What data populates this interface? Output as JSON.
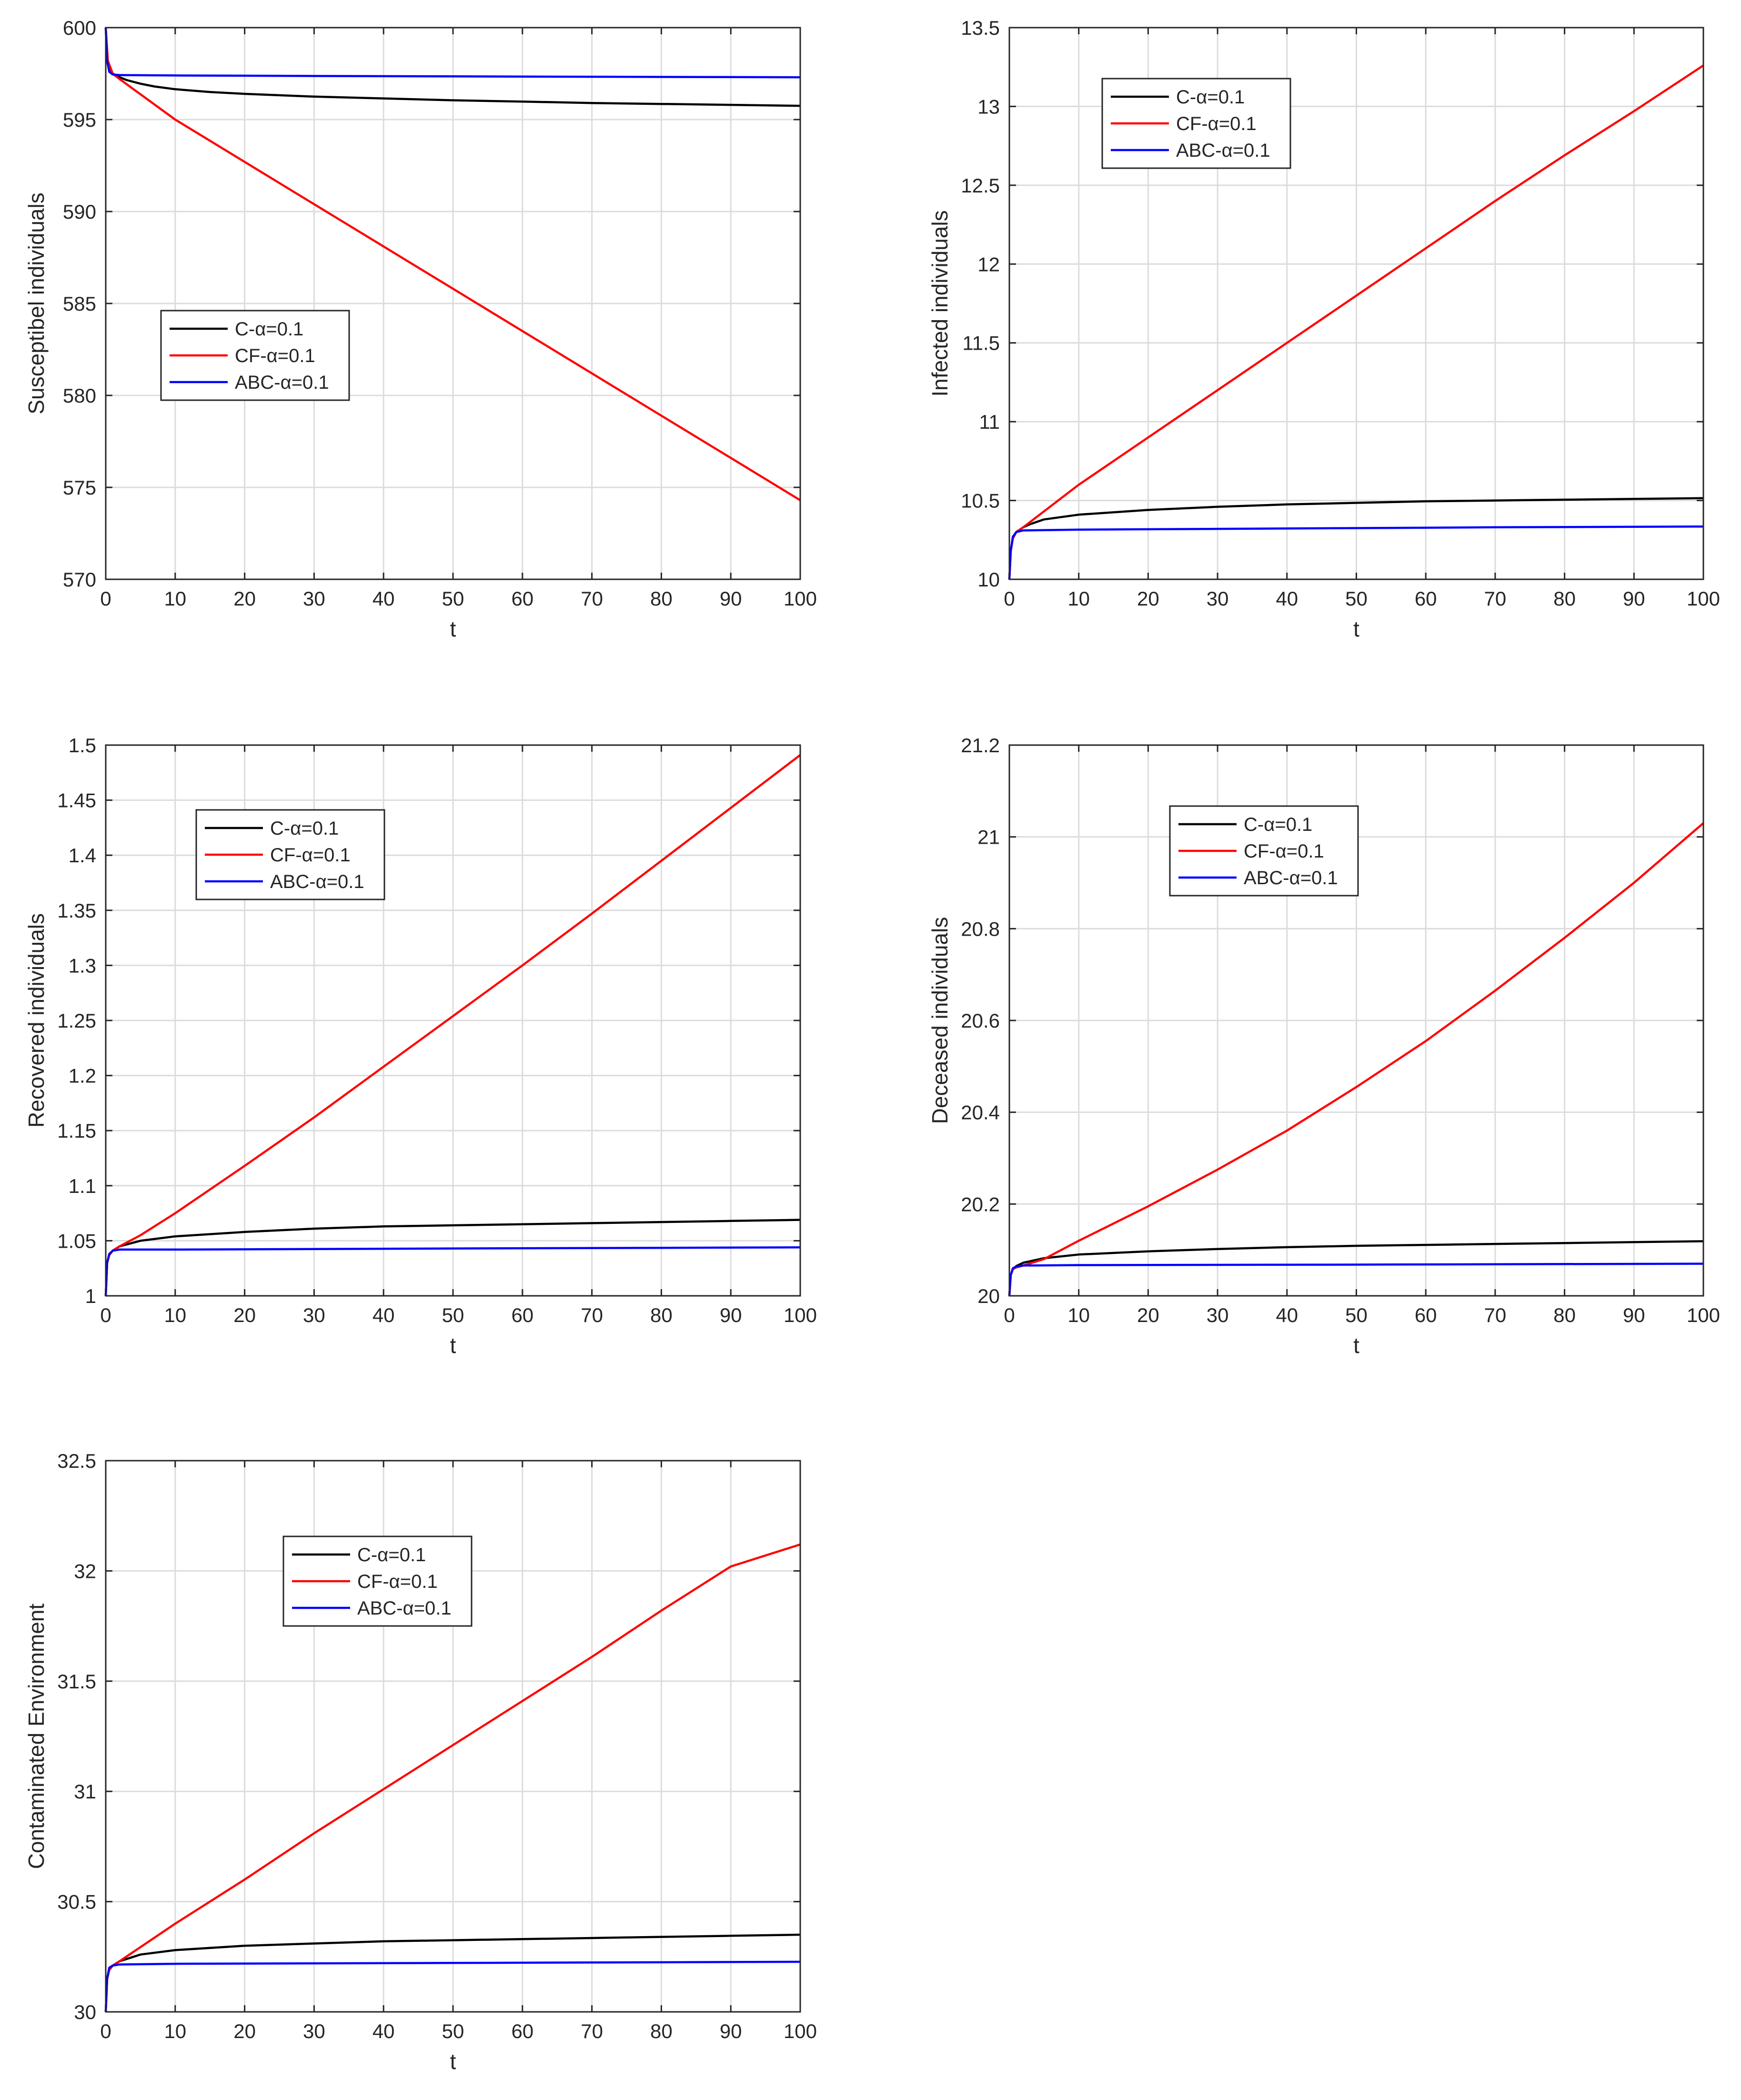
{
  "chart_data": [
    {
      "type": "line",
      "xlabel": "t",
      "ylabel": "Susceptibel individuals",
      "xlim": [
        0,
        100
      ],
      "ylim": [
        570,
        600
      ],
      "xticks": [
        0,
        10,
        20,
        30,
        40,
        50,
        60,
        70,
        80,
        90,
        100
      ],
      "yticks": [
        570,
        575,
        580,
        585,
        590,
        595,
        600
      ],
      "ytick_labels": [
        "570",
        "575",
        "580",
        "585",
        "590",
        "595",
        "600"
      ],
      "grid": true,
      "legend_position": "middle-left",
      "series": [
        {
          "name": "C-α=0.1",
          "color": "#000000",
          "x": [
            0,
            0.2,
            0.5,
            1,
            2,
            3,
            5,
            7,
            10,
            15,
            20,
            30,
            40,
            50,
            60,
            70,
            80,
            90,
            100
          ],
          "y": [
            600,
            598.2,
            597.8,
            597.5,
            597.3,
            597.15,
            596.95,
            596.8,
            596.65,
            596.5,
            596.4,
            596.25,
            596.15,
            596.05,
            595.98,
            595.9,
            595.85,
            595.8,
            595.75
          ]
        },
        {
          "name": "CF-α=0.1",
          "color": "#ff0000",
          "x": [
            0,
            0.3,
            1,
            2,
            10,
            20,
            30,
            40,
            50,
            60,
            70,
            80,
            90,
            100
          ],
          "y": [
            600,
            598.2,
            597.5,
            597.2,
            595.0,
            592.7,
            590.4,
            588.1,
            585.8,
            583.5,
            581.2,
            578.9,
            576.6,
            574.3
          ]
        },
        {
          "name": "ABC-α=0.1",
          "color": "#0000ff",
          "x": [
            0,
            0.2,
            0.5,
            1,
            2,
            10,
            30,
            50,
            70,
            100
          ],
          "y": [
            600,
            598.2,
            597.6,
            597.45,
            597.42,
            597.4,
            597.37,
            597.35,
            597.33,
            597.3
          ]
        }
      ]
    },
    {
      "type": "line",
      "xlabel": "t",
      "ylabel": "Infected individuals",
      "xlim": [
        0,
        100
      ],
      "ylim": [
        10,
        13.5
      ],
      "xticks": [
        0,
        10,
        20,
        30,
        40,
        50,
        60,
        70,
        80,
        90,
        100
      ],
      "yticks": [
        10,
        10.5,
        11,
        11.5,
        12,
        12.5,
        13,
        13.5
      ],
      "ytick_labels": [
        "10",
        "10.5",
        "11",
        "11.5",
        "12",
        "12.5",
        "13",
        "13.5"
      ],
      "grid": true,
      "legend_position": "top-left",
      "series": [
        {
          "name": "C-α=0.1",
          "color": "#000000",
          "x": [
            0,
            0.2,
            0.5,
            1,
            2,
            3,
            5,
            10,
            20,
            30,
            40,
            50,
            60,
            70,
            80,
            90,
            100
          ],
          "y": [
            10,
            10.18,
            10.26,
            10.3,
            10.33,
            10.35,
            10.38,
            10.41,
            10.44,
            10.46,
            10.475,
            10.485,
            10.495,
            10.5,
            10.505,
            10.51,
            10.515
          ]
        },
        {
          "name": "CF-α=0.1",
          "color": "#ff0000",
          "x": [
            0,
            0.2,
            0.5,
            1,
            2,
            10,
            20,
            30,
            40,
            50,
            60,
            70,
            80,
            90,
            100
          ],
          "y": [
            10,
            10.18,
            10.26,
            10.3,
            10.33,
            10.6,
            10.9,
            11.2,
            11.5,
            11.8,
            12.1,
            12.4,
            12.69,
            12.97,
            13.26
          ]
        },
        {
          "name": "ABC-α=0.1",
          "color": "#0000ff",
          "x": [
            0,
            0.2,
            0.5,
            1,
            2,
            10,
            30,
            50,
            70,
            100
          ],
          "y": [
            10,
            10.18,
            10.27,
            10.3,
            10.31,
            10.315,
            10.32,
            10.325,
            10.33,
            10.335
          ]
        }
      ]
    },
    {
      "type": "line",
      "xlabel": "t",
      "ylabel": "Recovered individuals",
      "xlim": [
        0,
        100
      ],
      "ylim": [
        1,
        1.5
      ],
      "xticks": [
        0,
        10,
        20,
        30,
        40,
        50,
        60,
        70,
        80,
        90,
        100
      ],
      "yticks": [
        1,
        1.05,
        1.1,
        1.15,
        1.2,
        1.25,
        1.3,
        1.35,
        1.4,
        1.45,
        1.5
      ],
      "ytick_labels": [
        "1",
        "1.05",
        "1.1",
        "1.15",
        "1.2",
        "1.25",
        "1.3",
        "1.35",
        "1.4",
        "1.45",
        "1.5"
      ],
      "grid": true,
      "legend_position": "top-left",
      "series": [
        {
          "name": "C-α=0.1",
          "color": "#000000",
          "x": [
            0,
            0.2,
            0.5,
            1,
            2,
            5,
            10,
            20,
            30,
            40,
            50,
            60,
            70,
            80,
            90,
            100
          ],
          "y": [
            1,
            1.03,
            1.037,
            1.041,
            1.045,
            1.05,
            1.054,
            1.058,
            1.061,
            1.063,
            1.064,
            1.065,
            1.066,
            1.067,
            1.068,
            1.069
          ]
        },
        {
          "name": "CF-α=0.1",
          "color": "#ff0000",
          "x": [
            0,
            0.2,
            0.5,
            1,
            2,
            5,
            10,
            20,
            30,
            40,
            50,
            60,
            70,
            80,
            90,
            100
          ],
          "y": [
            1,
            1.03,
            1.037,
            1.041,
            1.045,
            1.055,
            1.075,
            1.118,
            1.162,
            1.208,
            1.254,
            1.3,
            1.347,
            1.395,
            1.443,
            1.491
          ]
        },
        {
          "name": "ABC-α=0.1",
          "color": "#0000ff",
          "x": [
            0,
            0.2,
            0.5,
            1,
            2,
            10,
            50,
            100
          ],
          "y": [
            1,
            1.03,
            1.038,
            1.041,
            1.042,
            1.042,
            1.043,
            1.044
          ]
        }
      ]
    },
    {
      "type": "line",
      "xlabel": "t",
      "ylabel": "Deceased individuals",
      "xlim": [
        0,
        100
      ],
      "ylim": [
        20,
        21.2
      ],
      "xticks": [
        0,
        10,
        20,
        30,
        40,
        50,
        60,
        70,
        80,
        90,
        100
      ],
      "yticks": [
        20,
        20.2,
        20.4,
        20.6,
        20.8,
        21,
        21.2
      ],
      "ytick_labels": [
        "20",
        "20.2",
        "20.4",
        "20.6",
        "20.8",
        "21",
        "21.2"
      ],
      "grid": true,
      "legend_position": "top-center",
      "series": [
        {
          "name": "C-α=0.1",
          "color": "#000000",
          "x": [
            0,
            0.2,
            0.5,
            1,
            2,
            5,
            10,
            20,
            30,
            40,
            50,
            60,
            70,
            80,
            90,
            100
          ],
          "y": [
            20,
            20.045,
            20.058,
            20.065,
            20.072,
            20.082,
            20.09,
            20.097,
            20.102,
            20.106,
            20.109,
            20.111,
            20.113,
            20.115,
            20.117,
            20.119
          ]
        },
        {
          "name": "CF-α=0.1",
          "color": "#ff0000",
          "x": [
            0,
            0.2,
            0.5,
            1,
            2,
            5,
            10,
            20,
            30,
            40,
            50,
            60,
            70,
            80,
            90,
            100
          ],
          "y": [
            20,
            20.045,
            20.058,
            20.062,
            20.066,
            20.08,
            20.12,
            20.195,
            20.275,
            20.36,
            20.455,
            20.555,
            20.665,
            20.78,
            20.9,
            21.03
          ]
        },
        {
          "name": "ABC-α=0.1",
          "color": "#0000ff",
          "x": [
            0,
            0.2,
            0.5,
            1,
            2,
            10,
            50,
            100
          ],
          "y": [
            20,
            20.045,
            20.06,
            20.064,
            20.066,
            20.067,
            20.068,
            20.07
          ]
        }
      ]
    },
    {
      "type": "line",
      "xlabel": "t",
      "ylabel": "Contaminated Environment",
      "xlim": [
        0,
        100
      ],
      "ylim": [
        30,
        32.5
      ],
      "xticks": [
        0,
        10,
        20,
        30,
        40,
        50,
        60,
        70,
        80,
        90,
        100
      ],
      "yticks": [
        30,
        30.5,
        31,
        31.5,
        32,
        32.5
      ],
      "ytick_labels": [
        "30",
        "30.5",
        "31",
        "31.5",
        "32",
        "32.5"
      ],
      "grid": true,
      "legend_position": "top-center",
      "series": [
        {
          "name": "C-α=0.1",
          "color": "#000000",
          "x": [
            0,
            0.2,
            0.5,
            1,
            2,
            5,
            10,
            20,
            30,
            40,
            50,
            60,
            70,
            80,
            90,
            100
          ],
          "y": [
            30,
            30.15,
            30.19,
            30.21,
            30.23,
            30.26,
            30.28,
            30.3,
            30.31,
            30.32,
            30.325,
            30.33,
            30.335,
            30.34,
            30.345,
            30.35
          ]
        },
        {
          "name": "CF-α=0.1",
          "color": "#ff0000",
          "x": [
            0,
            0.2,
            0.5,
            1,
            2,
            10,
            20,
            30,
            40,
            50,
            60,
            70,
            80,
            90,
            100
          ],
          "y": [
            30,
            30.15,
            30.19,
            30.21,
            30.23,
            30.4,
            30.6,
            30.81,
            31.01,
            31.21,
            31.41,
            31.61,
            31.82,
            32.02,
            32.12
          ]
        },
        {
          "name": "ABC-α=0.1",
          "color": "#0000ff",
          "x": [
            0,
            0.2,
            0.5,
            1,
            2,
            10,
            50,
            100
          ],
          "y": [
            30,
            30.15,
            30.2,
            30.21,
            30.215,
            30.218,
            30.222,
            30.227
          ]
        }
      ]
    }
  ]
}
